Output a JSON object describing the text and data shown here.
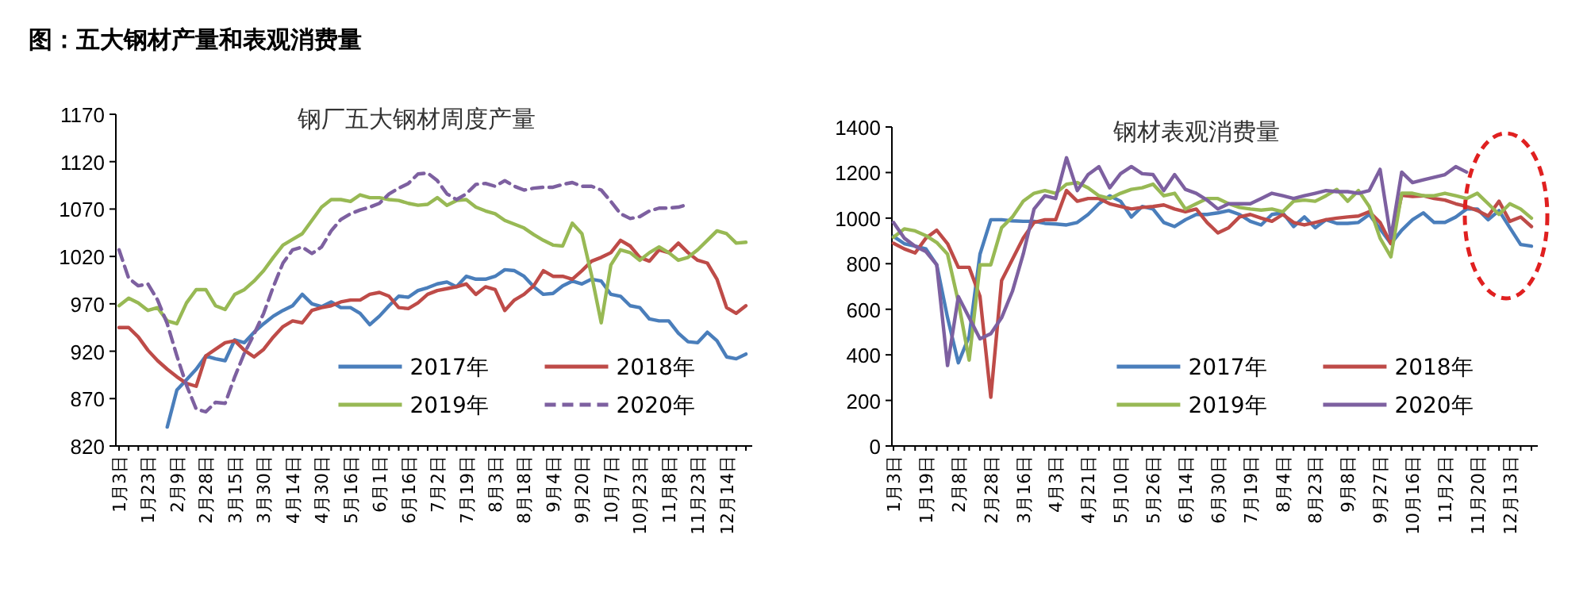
{
  "chart_data": [
    {
      "type": "line",
      "title": "钢厂五大钢材周度产量",
      "annotations": [
        "图：五大钢材产量和表观消费量"
      ],
      "categories": [
        "1月3日",
        null,
        null,
        "1月23日",
        null,
        null,
        "2月9日",
        null,
        null,
        "2月28日",
        null,
        null,
        "3月15日",
        null,
        null,
        "3月30日",
        null,
        null,
        "4月14日",
        null,
        null,
        "4月30日",
        null,
        null,
        "5月16日",
        null,
        null,
        "6月1日",
        null,
        null,
        "6月16日",
        null,
        null,
        "7月2日",
        null,
        null,
        "7月19日",
        null,
        null,
        "8月3日",
        null,
        null,
        "8月18日",
        null,
        null,
        "9月4日",
        null,
        null,
        "9月20日",
        null,
        null,
        "10月7日",
        null,
        null,
        "10月23日",
        null,
        null,
        "11月8日",
        null,
        null,
        "11月23日",
        null,
        null,
        "12月14日",
        null,
        null
      ],
      "ylim": [
        820,
        1170
      ],
      "yticks": [
        820,
        870,
        920,
        970,
        1020,
        1070,
        1120,
        1170
      ],
      "grid": false,
      "legend": "bottom right",
      "series": [
        {
          "name": "2017年",
          "color": "#4a7ebb",
          "line_style": "solid",
          "values": [
            null,
            null,
            null,
            null,
            null,
            840,
            879,
            890,
            901,
            915,
            912,
            910,
            932,
            929,
            940,
            949,
            957,
            963,
            968,
            980,
            970,
            967,
            972,
            966,
            966,
            960,
            948,
            957,
            968,
            978,
            977,
            984,
            987,
            991,
            993,
            988,
            999,
            996,
            996,
            999,
            1006,
            1005,
            999,
            988,
            980,
            981,
            989,
            994,
            991,
            996,
            994,
            980,
            978,
            968,
            966,
            954,
            952,
            952,
            939,
            930,
            929,
            940,
            931,
            914,
            912,
            917
          ]
        },
        {
          "name": "2018年",
          "color": "#be4b48",
          "line_style": "solid",
          "values": [
            945,
            945,
            935,
            921,
            910,
            901,
            893,
            886,
            883,
            915,
            922,
            929,
            931,
            921,
            914,
            922,
            935,
            946,
            952,
            950,
            963,
            966,
            968,
            972,
            974,
            974,
            980,
            982,
            978,
            966,
            965,
            971,
            980,
            984,
            986,
            988,
            991,
            980,
            988,
            985,
            963,
            974,
            980,
            989,
            1005,
            999,
            999,
            996,
            1005,
            1015,
            1019,
            1024,
            1037,
            1031,
            1019,
            1015,
            1027,
            1024,
            1034,
            1024,
            1016,
            1013,
            996,
            966,
            960,
            968
          ]
        },
        {
          "name": "2019年",
          "color": "#98b954",
          "line_style": "solid",
          "values": [
            968,
            976,
            971,
            963,
            966,
            952,
            949,
            971,
            985,
            985,
            968,
            964,
            980,
            985,
            994,
            1005,
            1019,
            1032,
            1038,
            1044,
            1058,
            1072,
            1080,
            1080,
            1078,
            1085,
            1082,
            1082,
            1080,
            1079,
            1076,
            1074,
            1075,
            1082,
            1074,
            1079,
            1080,
            1072,
            1068,
            1065,
            1058,
            1054,
            1050,
            1043,
            1037,
            1032,
            1031,
            1055,
            1044,
            1000,
            950,
            1011,
            1027,
            1024,
            1016,
            1024,
            1030,
            1024,
            1016,
            1019,
            1027,
            1037,
            1047,
            1044,
            1034,
            1035
          ]
        },
        {
          "name": "2020年",
          "color": "#7d60a0",
          "line_style": "dashed",
          "values": [
            1027,
            997,
            989,
            991,
            974,
            949,
            915,
            884,
            859,
            856,
            866,
            865,
            893,
            918,
            938,
            960,
            988,
            1013,
            1027,
            1030,
            1023,
            1030,
            1047,
            1059,
            1065,
            1069,
            1072,
            1076,
            1086,
            1092,
            1097,
            1107,
            1108,
            1100,
            1086,
            1080,
            1086,
            1096,
            1097,
            1094,
            1100,
            1094,
            1090,
            1092,
            1093,
            1093,
            1096,
            1098,
            1094,
            1094,
            1090,
            1078,
            1065,
            1060,
            1062,
            1068,
            1071,
            1071,
            1072,
            1075,
            null,
            null,
            null,
            null,
            null,
            null
          ]
        }
      ]
    },
    {
      "type": "line",
      "title": "钢材表观消费量",
      "categories": [
        "1月3日",
        null,
        null,
        "1月19日",
        null,
        null,
        "2月8日",
        null,
        null,
        "2月28日",
        null,
        null,
        "3月16日",
        null,
        null,
        "4月3日",
        null,
        null,
        "4月21日",
        null,
        null,
        "5月10日",
        null,
        null,
        "5月26日",
        null,
        null,
        "6月14日",
        null,
        null,
        "6月30日",
        null,
        null,
        "7月19日",
        null,
        null,
        "8月4日",
        null,
        null,
        "8月23日",
        null,
        null,
        "9月8日",
        null,
        null,
        "9月27日",
        null,
        null,
        "10月16日",
        null,
        null,
        "11月2日",
        null,
        null,
        "11月20日",
        null,
        null,
        "12月13日",
        null,
        null
      ],
      "ylim": [
        0,
        1400
      ],
      "yticks": [
        0,
        200,
        400,
        600,
        800,
        1000,
        1200,
        1400
      ],
      "grid": false,
      "legend": "bottom right",
      "series": [
        {
          "name": "2017年",
          "color": "#4a7ebb",
          "line_style": "solid",
          "values": [
            920,
            888,
            877,
            865,
            795,
            563,
            365,
            481,
            842,
            993,
            993,
            988,
            986,
            986,
            977,
            974,
            970,
            981,
            1016,
            1063,
            1098,
            1074,
            1005,
            1051,
            1040,
            981,
            963,
            993,
            1016,
            1016,
            1023,
            1033,
            1016,
            986,
            970,
            1016,
            1023,
            963,
            1005,
            958,
            993,
            977,
            977,
            981,
            1016,
            953,
            888,
            947,
            993,
            1023,
            981,
            981,
            1005,
            1040,
            1040,
            993,
            1033,
            958,
            884,
            877
          ]
        },
        {
          "name": "2018年",
          "color": "#be4b48",
          "line_style": "solid",
          "values": [
            890,
            865,
            847,
            912,
            947,
            888,
            784,
            784,
            656,
            214,
            726,
            819,
            912,
            981,
            993,
            993,
            1121,
            1074,
            1086,
            1086,
            1063,
            1051,
            1040,
            1047,
            1051,
            1058,
            1040,
            1028,
            1040,
            981,
            935,
            958,
            1005,
            1016,
            1000,
            986,
            1016,
            981,
            970,
            981,
            993,
            1000,
            1005,
            1009,
            1028,
            981,
            888,
            1100,
            1095,
            1098,
            1086,
            1079,
            1063,
            1051,
            1033,
            1009,
            1074,
            986,
            1005,
            963
          ]
        },
        {
          "name": "2019年",
          "color": "#98b954",
          "line_style": "solid",
          "values": [
            916,
            953,
            944,
            923,
            893,
            842,
            633,
            377,
            795,
            795,
            958,
            1005,
            1074,
            1109,
            1121,
            1109,
            1149,
            1156,
            1133,
            1098,
            1086,
            1109,
            1126,
            1133,
            1149,
            1098,
            1109,
            1040,
            1063,
            1086,
            1086,
            1063,
            1047,
            1040,
            1035,
            1040,
            1028,
            1074,
            1079,
            1074,
            1098,
            1126,
            1074,
            1121,
            1051,
            912,
            830,
            1109,
            1109,
            1098,
            1098,
            1109,
            1098,
            1086,
            1109,
            1063,
            1016,
            1063,
            1040,
            1000
          ]
        },
        {
          "name": "2020年",
          "color": "#7d60a0",
          "line_style": "solid",
          "values": [
            981,
            912,
            877,
            853,
            795,
            353,
            656,
            563,
            470,
            493,
            563,
            679,
            842,
            1040,
            1098,
            1086,
            1265,
            1121,
            1191,
            1226,
            1133,
            1195,
            1226,
            1195,
            1191,
            1121,
            1191,
            1126,
            1109,
            1079,
            1040,
            1063,
            1063,
            1063,
            1086,
            1109,
            1098,
            1086,
            1098,
            1109,
            1121,
            1116,
            1116,
            1109,
            1121,
            1214,
            912,
            1202,
            1156,
            1168,
            1179,
            1191,
            1226,
            1202,
            null,
            null,
            null,
            null,
            null,
            null
          ]
        }
      ]
    }
  ]
}
